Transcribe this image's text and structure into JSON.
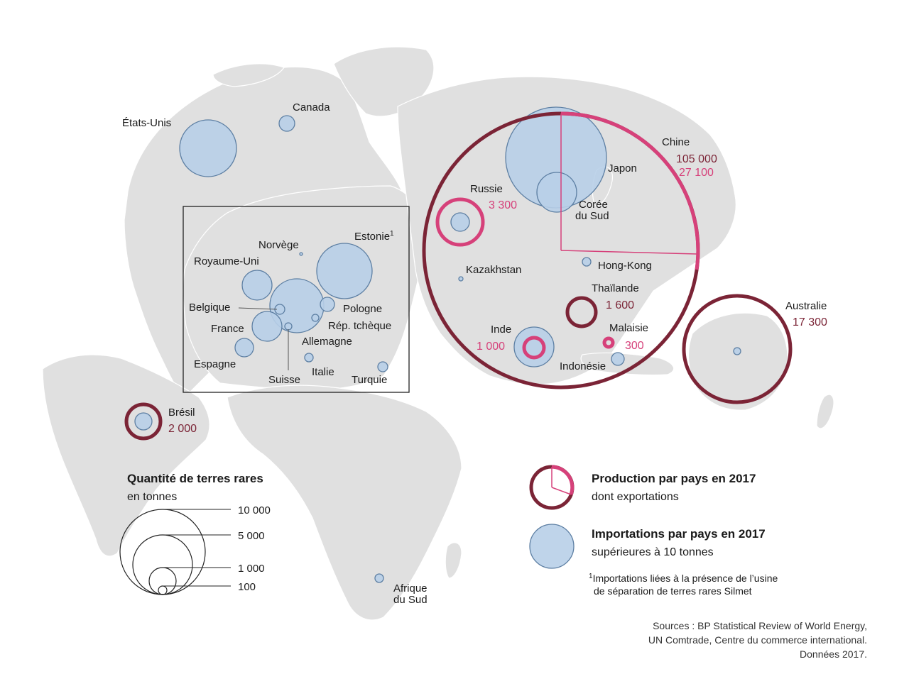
{
  "colors": {
    "land": "#e0e0e0",
    "import_fill": "#b8cfe8",
    "import_stroke": "#5d7fa3",
    "production": "#7b2436",
    "exports": "#d6417a"
  },
  "countries": {
    "etats_unis": "États-Unis",
    "canada": "Canada",
    "bresil": {
      "name": "Brésil",
      "production": "2 000"
    },
    "norvege": "Norvège",
    "estonie": "Estonie",
    "estonie_note": "1",
    "royaume_uni": "Royaume-Uni",
    "belgique": "Belgique",
    "pologne": "Pologne",
    "france": "France",
    "rep_tcheque": "Rép. tchèque",
    "allemagne": "Allemagne",
    "espagne": "Espagne",
    "suisse": "Suisse",
    "italie": "Italie",
    "turquie": "Turquie",
    "russie": {
      "name": "Russie",
      "production": "3 300"
    },
    "kazakhstan": "Kazakhstan",
    "chine": {
      "name": "Chine",
      "production": "105 000",
      "exports": "27 100"
    },
    "japon": "Japon",
    "coree_line1": "Corée",
    "coree_line2": "du Sud",
    "hong_kong": "Hong-Kong",
    "thailande": {
      "name": "Thaïlande",
      "production": "1 600"
    },
    "inde": {
      "name": "Inde",
      "production": "1 000"
    },
    "malaisie": {
      "name": "Malaisie",
      "production": "300"
    },
    "indonesie": "Indonésie",
    "australie": {
      "name": "Australie",
      "production": "17 300"
    },
    "afrique_line1": "Afrique",
    "afrique_line2": "du Sud"
  },
  "scale_legend": {
    "title": "Quantité de terres rares",
    "unit": "en tonnes",
    "values": [
      "10 000",
      "5 000",
      "1 000",
      "100"
    ]
  },
  "legend": {
    "production_title": "Production par pays en 2017",
    "production_sub": "dont exportations",
    "imports_title": "Importations par pays en 2017",
    "imports_sub": "supérieures à 10 tonnes"
  },
  "footnote": {
    "mark": "1",
    "line1": "Importations liées à la présence de l’usine",
    "line2": "de séparation de terres rares Silmet"
  },
  "sources": {
    "line1": "Sources : BP Statistical Review of World Energy,",
    "line2": "UN Comtrade, Centre du commerce international.",
    "line3": "Données 2017."
  }
}
